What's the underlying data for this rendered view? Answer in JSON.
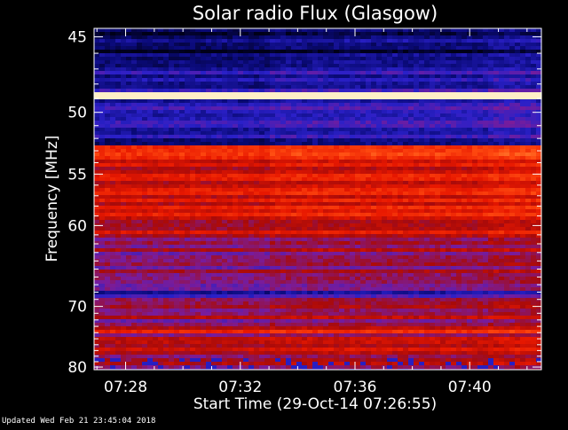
{
  "footer": {
    "updated": "Updated Wed Feb 21 23:45:04 2018"
  },
  "chart_data": {
    "type": "heatmap",
    "title": "Solar radio Flux (Glasgow)",
    "xlabel": "Start Time (29-Oct-14 07:26:55)",
    "ylabel": "Frequency [MHz]",
    "xlim_minutes": [
      26.9,
      42.5
    ],
    "ylim_mhz": [
      44.5,
      80.5
    ],
    "x_ticks": [
      {
        "label": "07:28",
        "value": 28
      },
      {
        "label": "07:32",
        "value": 32
      },
      {
        "label": "07:36",
        "value": 36
      },
      {
        "label": "07:40",
        "value": 40
      }
    ],
    "y_ticks": [
      {
        "label": "45",
        "value": 45
      },
      {
        "label": "50",
        "value": 50
      },
      {
        "label": "55",
        "value": 55
      },
      {
        "label": "60",
        "value": 60
      },
      {
        "label": "70",
        "value": 70
      },
      {
        "label": "80",
        "value": 80
      }
    ],
    "segment_breaks_minutes": [
      33.0,
      40.7
    ],
    "colormap": [
      "#000018",
      "#0a0a78",
      "#2a20c8",
      "#7a1c9a",
      "#a80a0a",
      "#e81800",
      "#ff4a10",
      "#ff9a40",
      "#fff0c8"
    ],
    "bands": [
      {
        "from": 44.5,
        "to": 47.0,
        "level": 0.06
      },
      {
        "from": 47.0,
        "to": 48.6,
        "level": 0.2
      },
      {
        "from": 48.6,
        "to": 49.1,
        "level": 0.98
      },
      {
        "from": 49.1,
        "to": 50.5,
        "level": 0.24
      },
      {
        "from": 50.5,
        "to": 52.7,
        "level": 0.18
      },
      {
        "from": 52.7,
        "to": 53.3,
        "level": 0.7
      },
      {
        "from": 53.3,
        "to": 56.5,
        "level": 0.55
      },
      {
        "from": 56.5,
        "to": 59.5,
        "level": 0.6
      },
      {
        "from": 59.5,
        "to": 62.0,
        "level": 0.5
      },
      {
        "from": 62.0,
        "to": 64.5,
        "level": 0.46
      },
      {
        "from": 64.5,
        "to": 66.5,
        "level": 0.4
      },
      {
        "from": 66.5,
        "to": 67.7,
        "level": 0.32
      },
      {
        "from": 67.7,
        "to": 68.8,
        "level": 0.26
      },
      {
        "from": 68.8,
        "to": 71.0,
        "level": 0.44
      },
      {
        "from": 71.0,
        "to": 73.5,
        "level": 0.42
      },
      {
        "from": 73.5,
        "to": 74.2,
        "level": 0.62
      },
      {
        "from": 74.2,
        "to": 77.0,
        "level": 0.5
      },
      {
        "from": 77.0,
        "to": 78.5,
        "level": 0.46
      },
      {
        "from": 78.5,
        "to": 80.5,
        "level": 0.4
      }
    ],
    "grid": false
  }
}
